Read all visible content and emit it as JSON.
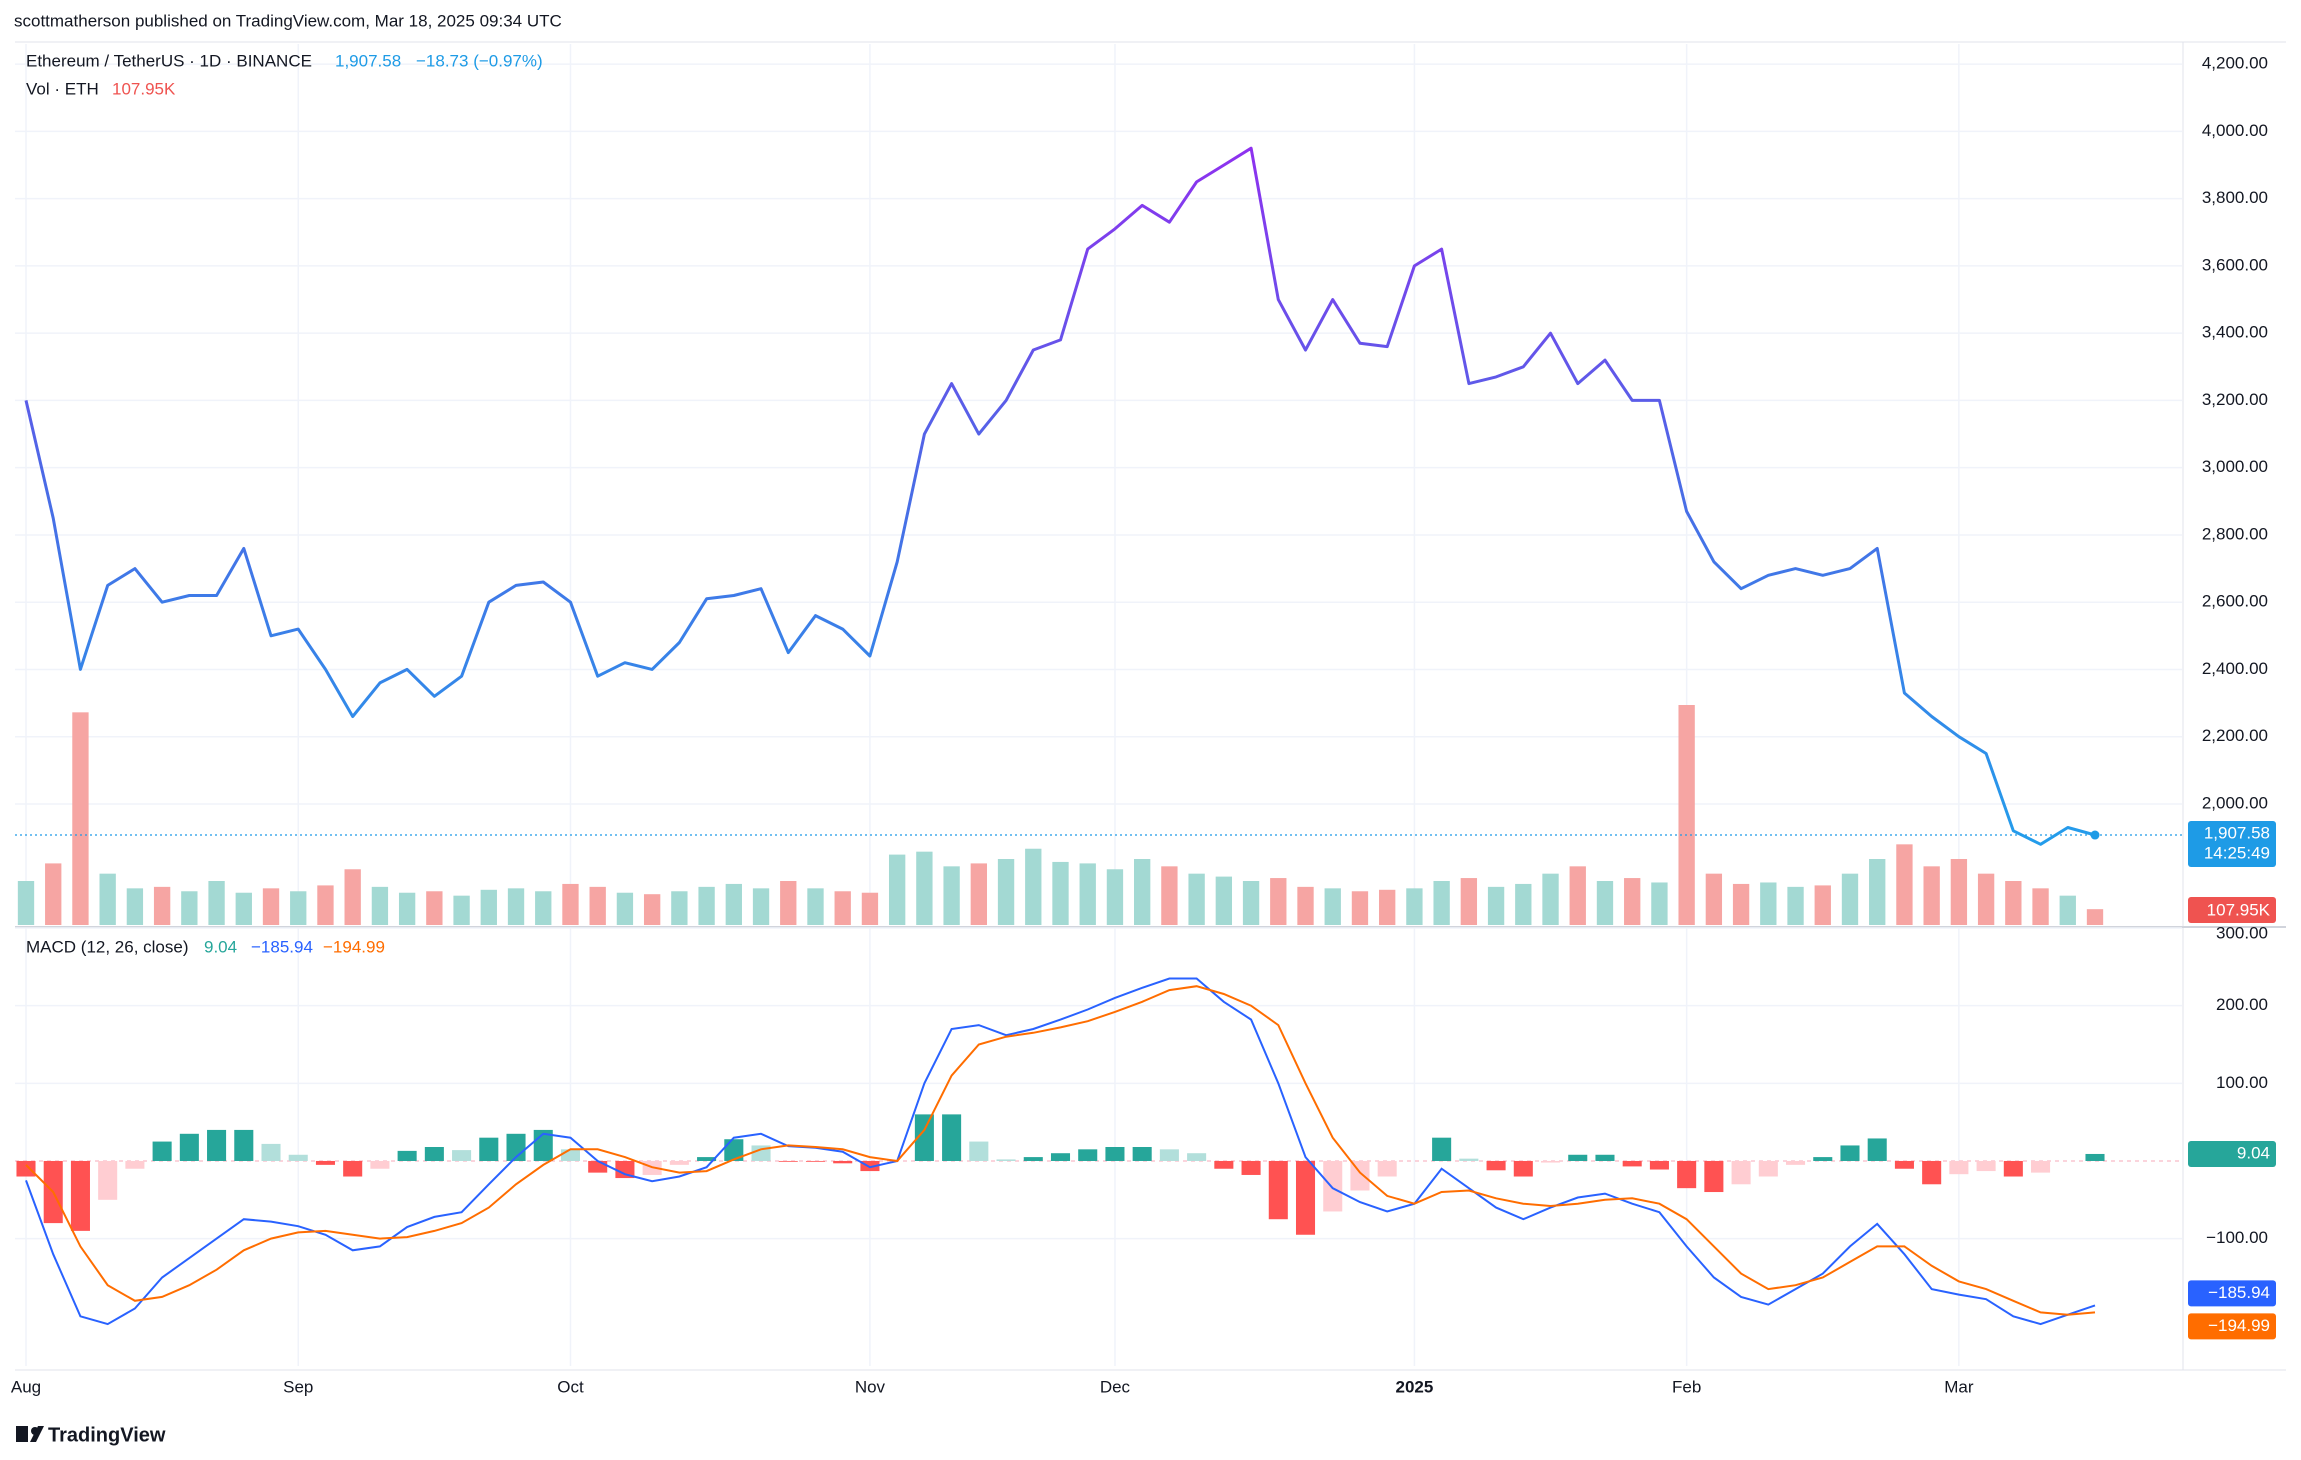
{
  "header": {
    "publisher": "scottmatherson published on TradingView.com, Mar 18, 2025 09:34 UTC",
    "footer": "TradingView"
  },
  "chart_data": [
    {
      "type": "line",
      "title": "Ethereum / TetherUS · 1D · BINANCE",
      "last_label": "1,907.58",
      "change": "−18.73 (−0.97%)",
      "categories": [
        "Aug",
        null,
        null,
        null,
        null,
        null,
        null,
        null,
        null,
        null,
        "Sep",
        null,
        null,
        null,
        null,
        null,
        null,
        null,
        null,
        null,
        "Oct",
        null,
        null,
        null,
        null,
        null,
        null,
        null,
        null,
        null,
        null,
        "Nov",
        null,
        null,
        null,
        null,
        null,
        null,
        null,
        null,
        "Dec",
        null,
        null,
        null,
        null,
        null,
        null,
        null,
        null,
        null,
        null,
        "2025",
        null,
        null,
        null,
        null,
        null,
        null,
        null,
        null,
        null,
        "Feb",
        null,
        null,
        null,
        null,
        null,
        null,
        null,
        null,
        null,
        "Mar",
        null,
        null,
        null,
        null,
        null
      ],
      "series": [
        {
          "type": "line",
          "line_colors": [
            "#a31ff2",
            "#4a6be6",
            "#1ba8ec"
          ],
          "values": [
            3200,
            2850,
            2400,
            2650,
            2700,
            2600,
            2620,
            2620,
            2760,
            2500,
            2520,
            2400,
            2260,
            2360,
            2400,
            2320,
            2380,
            2600,
            2650,
            2660,
            2600,
            2380,
            2420,
            2400,
            2480,
            2610,
            2620,
            2640,
            2450,
            2560,
            2520,
            2440,
            2720,
            3100,
            3250,
            3100,
            3200,
            3350,
            3380,
            3650,
            3710,
            3780,
            3730,
            3850,
            3900,
            3950,
            3500,
            3350,
            3500,
            3370,
            3360,
            3600,
            3650,
            3250,
            3270,
            3300,
            3400,
            3250,
            3320,
            3200,
            3200,
            2870,
            2720,
            2640,
            2680,
            2700,
            2680,
            2700,
            2760,
            2330,
            2260,
            2200,
            2150,
            1920,
            1880,
            1930,
            1907.58
          ]
        },
        {
          "type": "bar",
          "name": "Vol · ETH",
          "last_label": "107.95K",
          "colors": {
            "up": "#a3d9d3",
            "down": "#f6a5a3"
          },
          "values": [
            300,
            420,
            1450,
            350,
            250,
            260,
            230,
            300,
            220,
            250,
            230,
            270,
            380,
            260,
            220,
            230,
            200,
            240,
            250,
            230,
            280,
            260,
            220,
            210,
            230,
            260,
            280,
            250,
            300,
            250,
            230,
            220,
            480,
            500,
            400,
            420,
            450,
            520,
            430,
            420,
            380,
            450,
            400,
            350,
            330,
            300,
            320,
            260,
            250,
            230,
            240,
            250,
            300,
            320,
            260,
            280,
            350,
            400,
            300,
            320,
            290,
            1500,
            350,
            280,
            290,
            260,
            270,
            350,
            450,
            550,
            400,
            450,
            350,
            300,
            250,
            200,
            107.95
          ]
        }
      ],
      "price_tag": {
        "value": 1907.58,
        "label": "1,907.58",
        "countdown": "14:25:49",
        "color": "#1e9be6"
      },
      "ylim": [
        1640,
        4260
      ],
      "yticks": [
        {
          "value": 2000,
          "label": "2,000.00"
        },
        {
          "value": 2200,
          "label": "2,200.00"
        },
        {
          "value": 2400,
          "label": "2,400.00"
        },
        {
          "value": 2600,
          "label": "2,600.00"
        },
        {
          "value": 2800,
          "label": "2,800.00"
        },
        {
          "value": 3000,
          "label": "3,000.00"
        },
        {
          "value": 3200,
          "label": "3,200.00"
        },
        {
          "value": 3400,
          "label": "3,400.00"
        },
        {
          "value": 3600,
          "label": "3,600.00"
        },
        {
          "value": 3800,
          "label": "3,800.00"
        },
        {
          "value": 4000,
          "label": "4,000.00"
        },
        {
          "value": 4200,
          "label": "4,200.00"
        }
      ],
      "grid": true
    },
    {
      "type": "macd",
      "title": "MACD (12, 26, close)",
      "series": [
        {
          "type": "bar",
          "last_label": "9.04",
          "color": "#26a69a",
          "colors": [
            "#26a69a",
            "#b2dfdb",
            "#ff5252",
            "#ffcdd2"
          ],
          "values": [
            -20,
            -80,
            -90,
            -50,
            -10,
            25,
            35,
            40,
            40,
            22,
            8,
            -5,
            -20,
            -10,
            13,
            18,
            14,
            30,
            35,
            40,
            15,
            -15,
            -22,
            -18,
            -5,
            5,
            28,
            20,
            -1,
            -1,
            -3,
            -13,
            0,
            60,
            60,
            25,
            2,
            5,
            10,
            15,
            18,
            18,
            15,
            10,
            -10,
            -18,
            -75,
            -95,
            -65,
            -38,
            -20,
            0,
            30,
            3,
            -12,
            -20,
            -2,
            8,
            8,
            -7,
            -11,
            -35,
            -40,
            -30,
            -20,
            -5,
            5,
            20,
            29,
            -10,
            -30,
            -17,
            -13,
            -20,
            -15,
            0,
            9.04
          ]
        },
        {
          "type": "line",
          "last_label": "−185.94",
          "color": "#2962ff",
          "values": [
            -25,
            -120,
            -200,
            -210,
            -190,
            -150,
            -125,
            -100,
            -75,
            -78,
            -84,
            -95,
            -115,
            -110,
            -85,
            -72,
            -66,
            -30,
            5,
            35,
            30,
            0,
            -17,
            -26,
            -20,
            -8,
            30,
            35,
            19,
            17,
            12,
            -8,
            0,
            100,
            170,
            175,
            162,
            170,
            182,
            195,
            210,
            223,
            235,
            235,
            205,
            182,
            100,
            5,
            -35,
            -53,
            -65,
            -55,
            -10,
            -35,
            -60,
            -75,
            -60,
            -47,
            -42,
            -55,
            -66,
            -110,
            -150,
            -175,
            -185,
            -165,
            -145,
            -110,
            -81,
            -120,
            -165,
            -172,
            -178,
            -200,
            -210,
            -198,
            -185.94
          ]
        },
        {
          "type": "line",
          "last_label": "−194.99",
          "color": "#ff6d00",
          "values": [
            -5,
            -40,
            -110,
            -160,
            -180,
            -175,
            -160,
            -140,
            -115,
            -100,
            -92,
            -90,
            -95,
            -100,
            -98,
            -90,
            -80,
            -60,
            -30,
            -5,
            15,
            15,
            5,
            -8,
            -15,
            -13,
            2,
            15,
            20,
            18,
            15,
            5,
            0,
            40,
            110,
            150,
            160,
            165,
            172,
            180,
            192,
            205,
            220,
            225,
            215,
            200,
            175,
            100,
            30,
            -15,
            -45,
            -55,
            -40,
            -38,
            -48,
            -55,
            -58,
            -55,
            -50,
            -48,
            -55,
            -75,
            -110,
            -145,
            -165,
            -160,
            -150,
            -130,
            -110,
            -110,
            -135,
            -155,
            -165,
            -180,
            -195,
            -198,
            -194.99
          ]
        }
      ],
      "ylim": [
        -264,
        300
      ],
      "yticks": [
        {
          "value": -100,
          "label": "−100.00"
        },
        {
          "value": 100,
          "label": "100.00"
        },
        {
          "value": 200,
          "label": "200.00"
        },
        {
          "value": 300,
          "label": "300.00"
        }
      ],
      "grid": true
    }
  ]
}
